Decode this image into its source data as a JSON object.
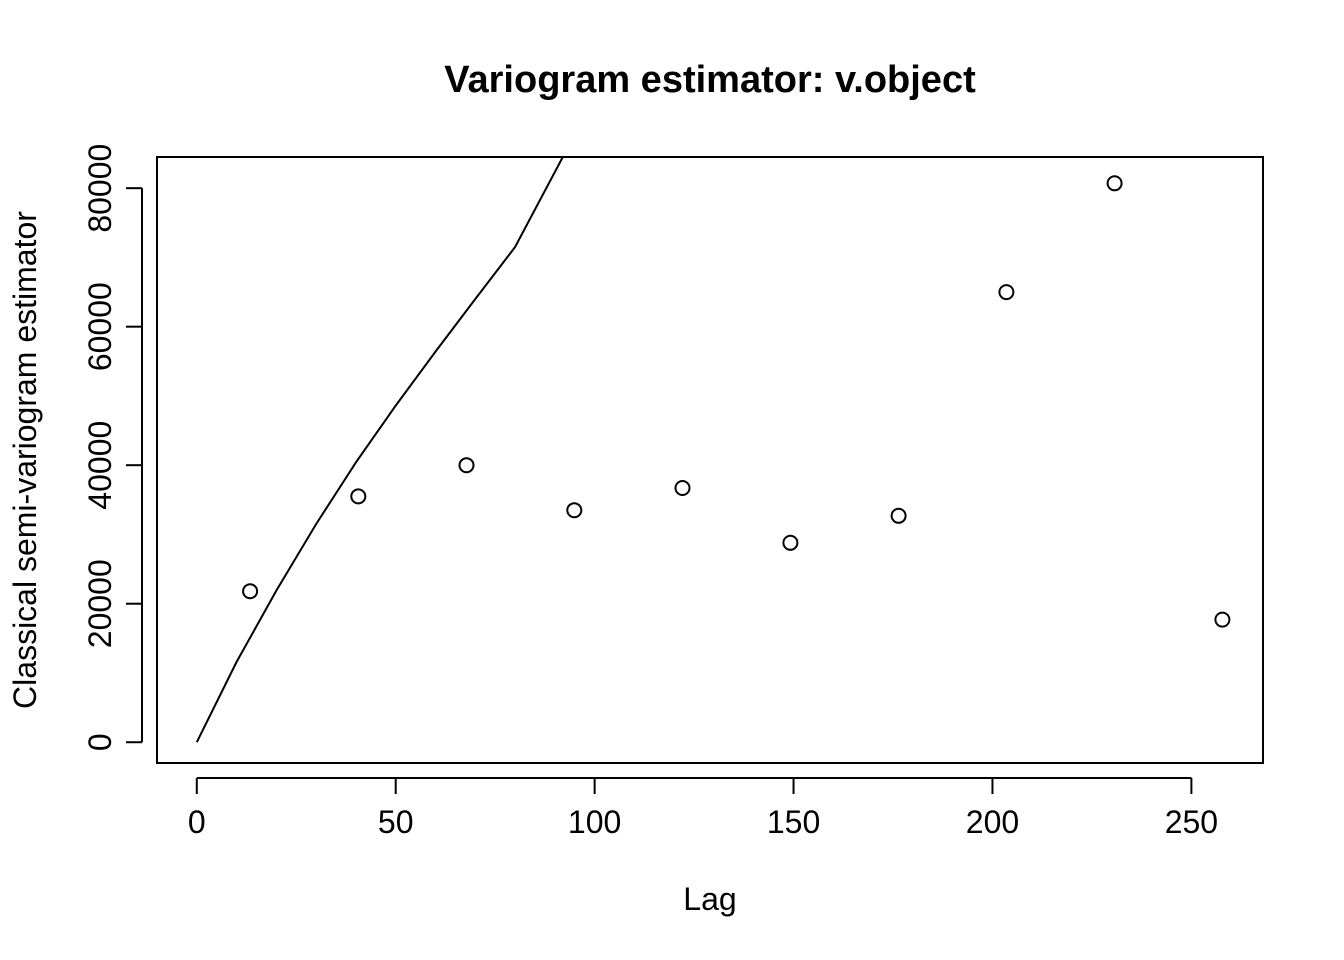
{
  "chart_data": {
    "type": "scatter",
    "title": "Variogram estimator: v.object",
    "xlabel": "Lag",
    "ylabel": "Classical semi-variogram estimator",
    "xlim": [
      -10,
      268
    ],
    "ylim": [
      -3000,
      84500
    ],
    "x_ticks": [
      0,
      50,
      100,
      150,
      200,
      250
    ],
    "y_ticks": [
      0,
      20000,
      40000,
      60000,
      80000
    ],
    "grid": false,
    "legend": "none",
    "series": [
      {
        "marker": "open-circle",
        "x": [
          13.4,
          40.6,
          67.8,
          94.9,
          122.1,
          149.2,
          176.4,
          203.5,
          230.7,
          257.8
        ],
        "y": [
          21800,
          35500,
          40000,
          33500,
          36700,
          28800,
          32700,
          65000,
          80700,
          17700
        ]
      }
    ],
    "curve": {
      "line": "solid",
      "x": [
        0,
        10,
        20,
        30,
        40,
        50,
        60,
        70,
        80,
        92
      ],
      "y": [
        0,
        11600,
        21900,
        31500,
        40400,
        48600,
        56400,
        64000,
        71500,
        84500
      ]
    }
  }
}
